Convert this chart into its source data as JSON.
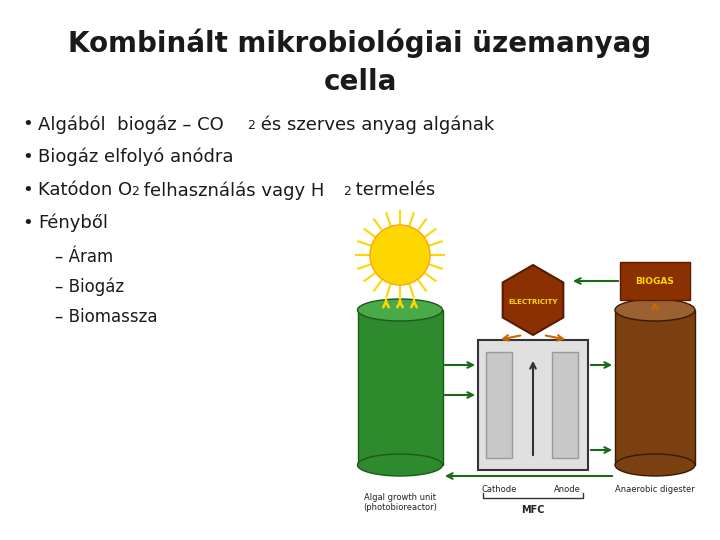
{
  "title_line1": "Kombinált mikrobiológiai üzemanyag",
  "title_line2": "cella",
  "title_fontsize": 20,
  "title_color": "#1a1a1a",
  "bg_color": "#ffffff",
  "bullet_color": "#1a1a1a",
  "bullet_fontsize": 13,
  "sub_fontsize": 12,
  "sub_bullets": [
    "– Áram",
    "– Biogáz",
    "– Biomassza"
  ],
  "green_cyl_color": "#2d8a2d",
  "green_cyl_edge": "#1a5a1a",
  "green_cyl_top": "#4aaa4a",
  "brown_cyl_color": "#7a4010",
  "brown_cyl_edge": "#3a1a00",
  "brown_cyl_top": "#9a6030",
  "electricity_color": "#8B3000",
  "biogas_color": "#8B3000",
  "arrow_green": "#1a6a1a",
  "arrow_orange": "#cc6600",
  "sun_color": "#FFD700",
  "sun_edge": "#FFA500"
}
